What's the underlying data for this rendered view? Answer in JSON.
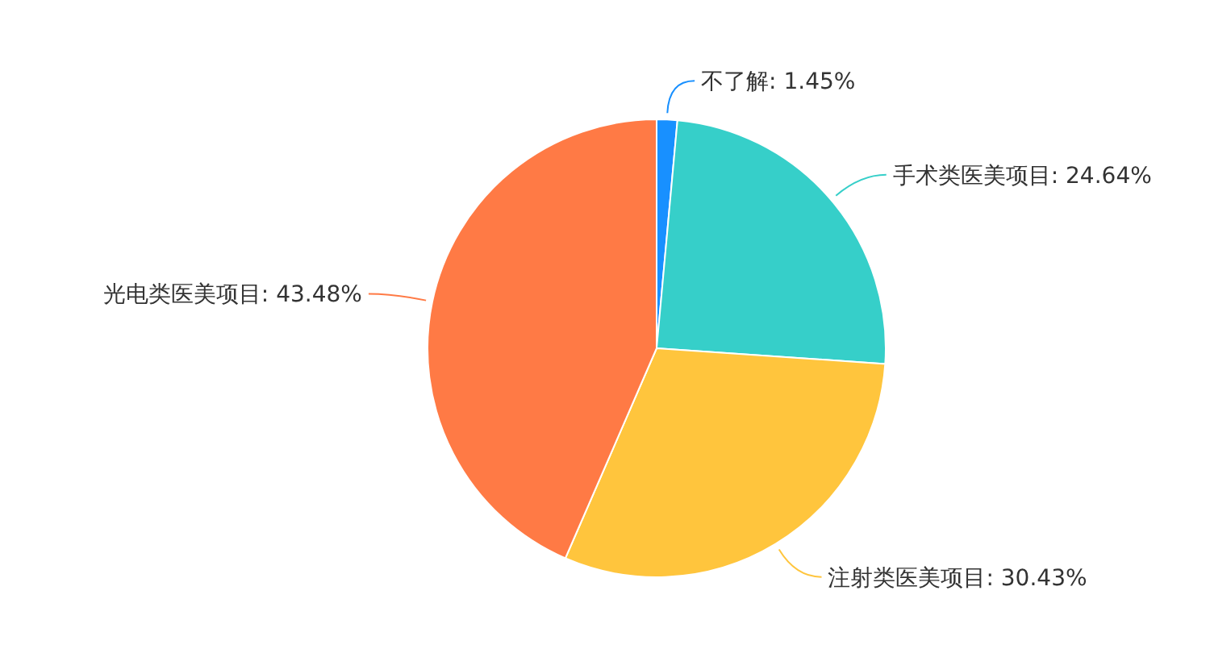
{
  "chart_data": {
    "type": "pie",
    "categories": [
      "不了解",
      "手术类医美项目",
      "注射类医美项目",
      "光电类医美项目"
    ],
    "values": [
      1.45,
      24.64,
      30.43,
      43.48
    ],
    "value_labels": [
      "1.45%",
      "24.64%",
      "30.43%",
      "43.48%"
    ],
    "colors": [
      "#1890ff",
      "#36cfc9",
      "#ffc53d",
      "#ff7a45"
    ],
    "legend": false
  }
}
